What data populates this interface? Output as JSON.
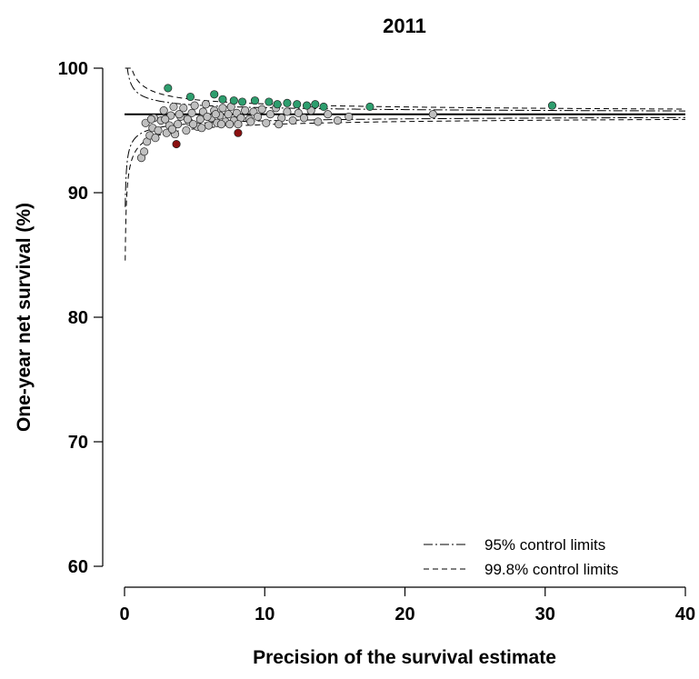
{
  "chart_data": {
    "type": "scatter",
    "title": "2011",
    "xlabel": "Precision of the survival estimate",
    "ylabel": "One-year net survival (%)",
    "xlim": [
      0,
      40
    ],
    "ylim": [
      58,
      100
    ],
    "x_ticks": [
      "0",
      "10",
      "20",
      "30",
      "40"
    ],
    "y_ticks": [
      "60",
      "70",
      "80",
      "90",
      "100"
    ],
    "grid": false,
    "legend_position": "bottom-right",
    "legend": [
      {
        "label": "95% control limits",
        "line_style": "dash-dot"
      },
      {
        "label": "99.8% control limits",
        "line_style": "dashed"
      }
    ],
    "target_value": 96.3,
    "control_limits": [
      {
        "label": "95% control limits",
        "z": 1.96
      },
      {
        "label": "99.8% control limits",
        "z": 3.09
      }
    ],
    "colors": {
      "within_limits": "#c0c0c0",
      "above_limits": "#2e9e6e",
      "below_limits": "#8b1010"
    },
    "series": [
      {
        "category": "within_limits",
        "points": [
          [
            1.2,
            92.8
          ],
          [
            1.4,
            93.3
          ],
          [
            1.6,
            94.1
          ],
          [
            1.8,
            94.6
          ],
          [
            2.0,
            95.2
          ],
          [
            1.5,
            95.6
          ],
          [
            2.2,
            94.4
          ],
          [
            2.4,
            95.0
          ],
          [
            2.6,
            95.8
          ],
          [
            2.8,
            96.6
          ],
          [
            3.0,
            94.8
          ],
          [
            3.2,
            95.4
          ],
          [
            3.3,
            96.2
          ],
          [
            3.5,
            96.9
          ],
          [
            3.6,
            94.7
          ],
          [
            3.8,
            95.5
          ],
          [
            4.0,
            96.1
          ],
          [
            4.2,
            96.8
          ],
          [
            4.4,
            95.0
          ],
          [
            4.6,
            95.7
          ],
          [
            4.8,
            96.4
          ],
          [
            5.0,
            97.0
          ],
          [
            5.2,
            95.3
          ],
          [
            5.4,
            95.9
          ],
          [
            5.6,
            96.5
          ],
          [
            5.8,
            97.1
          ],
          [
            6.0,
            95.4
          ],
          [
            6.2,
            96.0
          ],
          [
            6.4,
            96.6
          ],
          [
            6.6,
            95.6
          ],
          [
            6.8,
            96.2
          ],
          [
            7.0,
            96.8
          ],
          [
            7.2,
            95.7
          ],
          [
            7.4,
            96.3
          ],
          [
            7.6,
            96.9
          ],
          [
            7.8,
            95.8
          ],
          [
            8.0,
            96.4
          ],
          [
            8.3,
            96.0
          ],
          [
            8.6,
            96.6
          ],
          [
            8.9,
            95.9
          ],
          [
            9.2,
            96.5
          ],
          [
            9.5,
            96.1
          ],
          [
            9.8,
            96.7
          ],
          [
            10.1,
            95.6
          ],
          [
            10.4,
            96.3
          ],
          [
            10.8,
            96.8
          ],
          [
            11.2,
            96.0
          ],
          [
            11.6,
            96.5
          ],
          [
            12.0,
            95.8
          ],
          [
            12.4,
            96.4
          ],
          [
            12.8,
            96.0
          ],
          [
            13.3,
            96.6
          ],
          [
            13.8,
            95.7
          ],
          [
            14.5,
            96.3
          ],
          [
            15.2,
            95.8
          ],
          [
            16.0,
            96.1
          ],
          [
            22.0,
            96.3
          ],
          [
            2.1,
            96.0
          ],
          [
            2.9,
            95.9
          ],
          [
            3.9,
            96.3
          ],
          [
            4.9,
            95.5
          ],
          [
            5.9,
            96.1
          ],
          [
            6.9,
            95.5
          ],
          [
            8.1,
            95.5
          ],
          [
            9.0,
            95.7
          ],
          [
            11.0,
            95.5
          ],
          [
            3.4,
            95.1
          ],
          [
            4.5,
            95.9
          ],
          [
            5.5,
            95.2
          ],
          [
            6.5,
            96.3
          ],
          [
            7.5,
            95.5
          ],
          [
            1.9,
            95.9
          ]
        ]
      },
      {
        "category": "above_limits",
        "points": [
          [
            3.1,
            98.4
          ],
          [
            4.7,
            97.7
          ],
          [
            6.4,
            97.9
          ],
          [
            7.0,
            97.5
          ],
          [
            7.8,
            97.4
          ],
          [
            8.4,
            97.3
          ],
          [
            9.3,
            97.4
          ],
          [
            10.3,
            97.3
          ],
          [
            10.9,
            97.1
          ],
          [
            11.6,
            97.2
          ],
          [
            12.3,
            97.1
          ],
          [
            13.0,
            97.0
          ],
          [
            13.6,
            97.1
          ],
          [
            14.2,
            96.9
          ],
          [
            17.5,
            96.9
          ],
          [
            30.5,
            97.0
          ]
        ]
      },
      {
        "category": "below_limits",
        "points": [
          [
            3.7,
            93.9
          ],
          [
            8.1,
            94.8
          ]
        ]
      }
    ]
  }
}
